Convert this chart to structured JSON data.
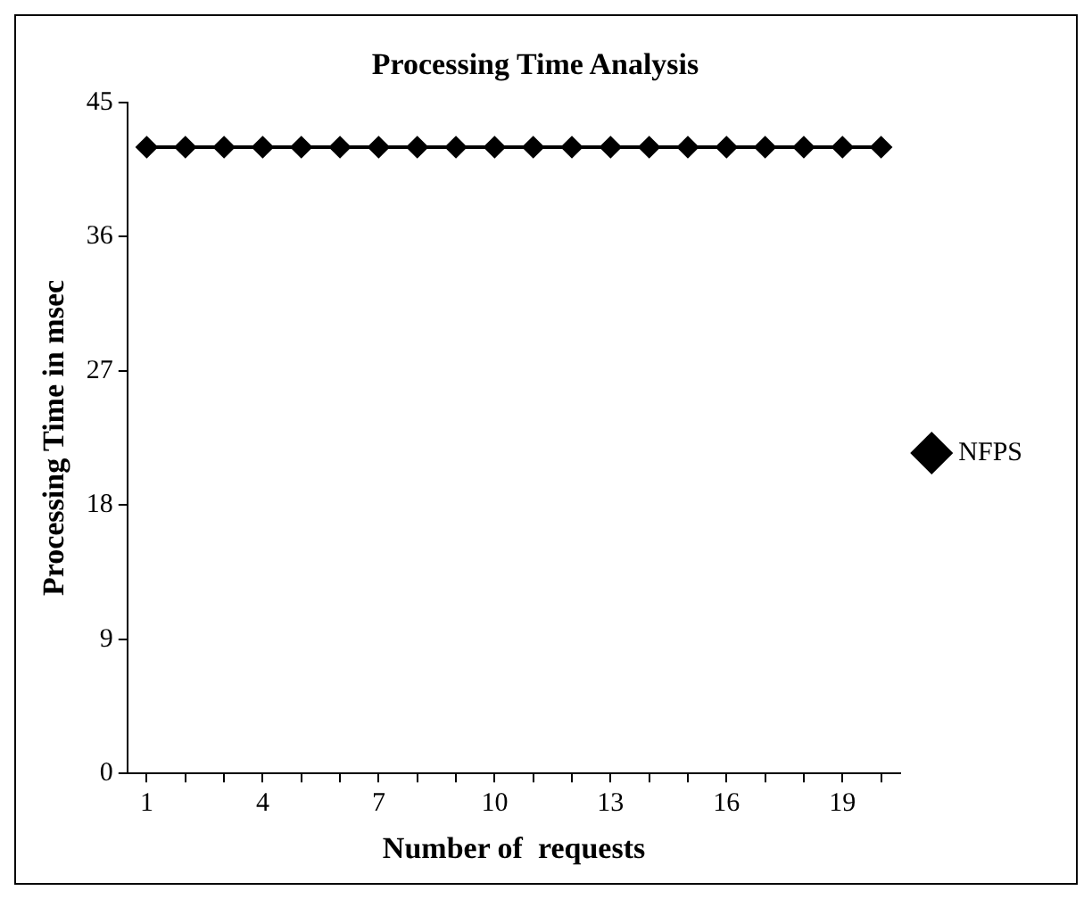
{
  "chart_data": {
    "type": "line",
    "title": "Processing Time Analysis",
    "xlabel": "Number of  requests",
    "ylabel": "Processing Time in msec",
    "categories": [
      "1",
      null,
      null,
      "4",
      null,
      null,
      "7",
      null,
      null,
      "10",
      null,
      null,
      "13",
      null,
      null,
      "16",
      null,
      null,
      "19",
      null
    ],
    "series": [
      {
        "name": "NFPS",
        "color": "#000000",
        "values": [
          42,
          42,
          42,
          42,
          42,
          42,
          42,
          42,
          42,
          42,
          42,
          42,
          42,
          42,
          42,
          42,
          42,
          42,
          42,
          42
        ]
      }
    ],
    "ylim": [
      0,
      45
    ],
    "yticks": [
      0,
      9,
      18,
      27,
      36,
      45
    ],
    "grid": false,
    "legend": "right",
    "marker": "diamond",
    "line_style": "solid"
  }
}
